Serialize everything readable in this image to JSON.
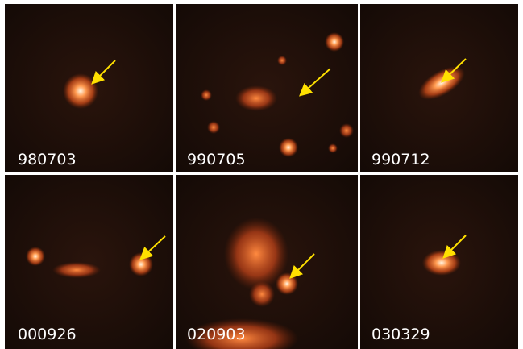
{
  "panels": [
    {
      "label": "980703"
    },
    {
      "label": "990705"
    },
    {
      "label": "990712"
    },
    {
      "label": "000926"
    },
    {
      "label": "020903"
    },
    {
      "label": "030329"
    }
  ]
}
